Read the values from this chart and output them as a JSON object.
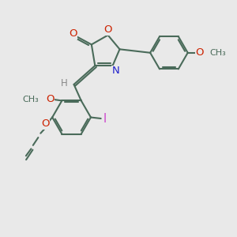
{
  "bg_color": "#e9e9e9",
  "bond_color": "#4a6b5a",
  "O_color": "#cc2200",
  "N_color": "#2222cc",
  "I_color": "#cc44cc",
  "H_color": "#888888",
  "line_width": 1.5,
  "font_size": 8.5,
  "figsize": [
    3.0,
    3.0
  ],
  "dpi": 100,
  "xlim": [
    0,
    10
  ],
  "ylim": [
    0,
    10
  ]
}
